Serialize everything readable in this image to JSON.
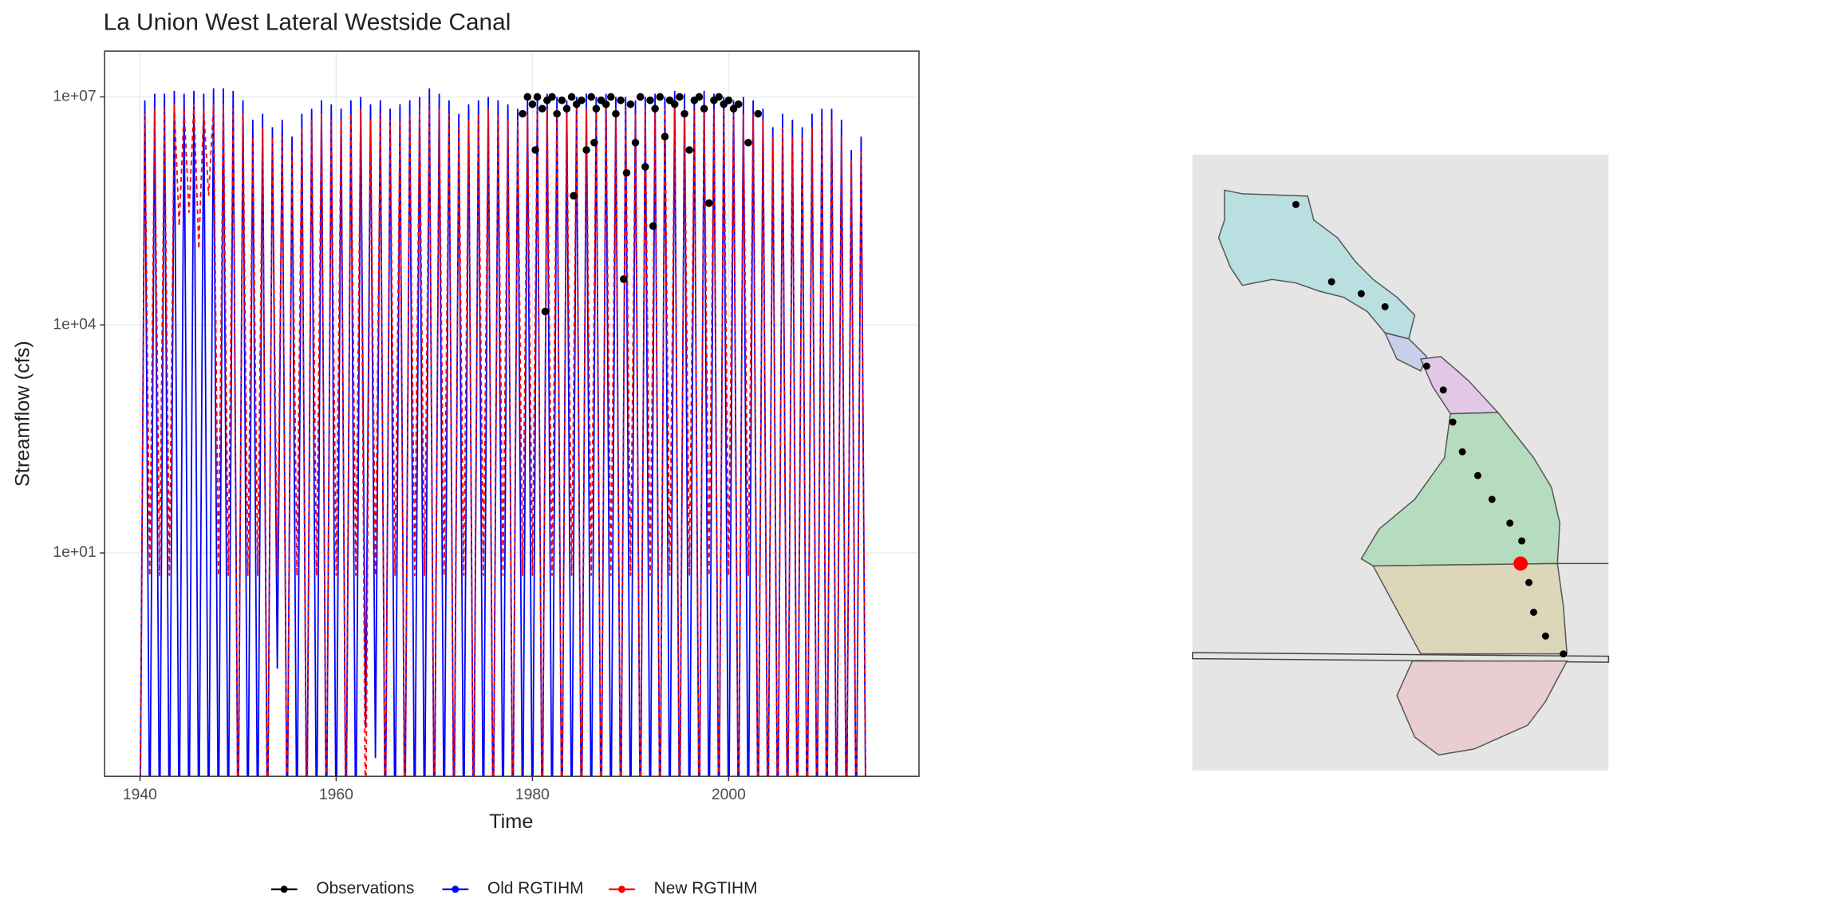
{
  "chart_data": {
    "type": "line",
    "title": "La Union West Lateral  Westside Canal",
    "x_label": "Time",
    "y_label": "Streamflow (cfs)",
    "log_y": true,
    "grid": true,
    "legend": "bottom",
    "xlim": [
      1936.4,
      2019.4
    ],
    "xticks": [
      1940,
      1960,
      1980,
      2000
    ],
    "ylim": [
      0.0115,
      40000000
    ],
    "yticks": [
      {
        "value": 10,
        "label": "1e+01"
      },
      {
        "value": 10000,
        "label": "1e+04"
      },
      {
        "value": 10000000,
        "label": "1e+07"
      }
    ],
    "x": [
      1940,
      1940.5,
      1941,
      1941.5,
      1942,
      1942.5,
      1943,
      1943.5,
      1944,
      1944.5,
      1945,
      1945.5,
      1946,
      1946.5,
      1947,
      1947.5,
      1948,
      1948.5,
      1949,
      1949.5,
      1950,
      1950.5,
      1951,
      1951.5,
      1952,
      1952.5,
      1953,
      1953.5,
      1954,
      1954.5,
      1955,
      1955.5,
      1956,
      1956.5,
      1957,
      1957.5,
      1958,
      1958.5,
      1959,
      1959.5,
      1960,
      1960.5,
      1961,
      1961.5,
      1962,
      1962.5,
      1963,
      1963.5,
      1964,
      1964.5,
      1965,
      1965.5,
      1966,
      1966.5,
      1967,
      1967.5,
      1968,
      1968.5,
      1969,
      1969.5,
      1970,
      1970.5,
      1971,
      1971.5,
      1972,
      1972.5,
      1973,
      1973.5,
      1974,
      1974.5,
      1975,
      1975.5,
      1976,
      1976.5,
      1977,
      1977.5,
      1978,
      1978.5,
      1979,
      1979.5,
      1980,
      1980.5,
      1981,
      1981.5,
      1982,
      1982.5,
      1983,
      1983.5,
      1984,
      1984.5,
      1985,
      1985.5,
      1986,
      1986.5,
      1987,
      1987.5,
      1988,
      1988.5,
      1989,
      1989.5,
      1990,
      1990.5,
      1991,
      1991.5,
      1992,
      1992.5,
      1993,
      1993.5,
      1994,
      1994.5,
      1995,
      1995.5,
      1996,
      1996.5,
      1997,
      1997.5,
      1998,
      1998.5,
      1999,
      1999.5,
      2000,
      2000.5,
      2001,
      2001.5,
      2002,
      2002.5,
      2003,
      2003.5,
      2004,
      2004.5,
      2005,
      2005.5,
      2006,
      2006.5,
      2007,
      2007.5,
      2008,
      2008.5,
      2009,
      2009.5,
      2010,
      2010.5,
      2011,
      2011.5,
      2012,
      2012.5,
      2013,
      2013.5,
      2014
    ],
    "series": [
      {
        "name": "Observations",
        "color": "#000000",
        "kind": "points",
        "x": [
          1979,
          1979.5,
          1980,
          1980.3,
          1980.5,
          1981,
          1981.3,
          1981.5,
          1982,
          1982.5,
          1983,
          1983.5,
          1984,
          1984.2,
          1984.5,
          1985,
          1985.5,
          1986,
          1986.3,
          1986.5,
          1987,
          1987.5,
          1988,
          1988.5,
          1989,
          1989.3,
          1989.6,
          1990,
          1990.5,
          1991,
          1991.5,
          1992,
          1992.3,
          1992.5,
          1993,
          1993.5,
          1994,
          1994.5,
          1995,
          1995.5,
          1996,
          1996.5,
          1997,
          1997.5,
          1998,
          1998.5,
          1999,
          1999.5,
          2000,
          2000.5,
          2001,
          2002,
          2003
        ],
        "values": [
          6000000.0,
          10000000.0,
          8000000.0,
          2000000.0,
          10000000.0,
          7000000.0,
          15000.0,
          9000000.0,
          10000000.0,
          6000000.0,
          9000000.0,
          7000000.0,
          10000000.0,
          500000.0,
          8000000.0,
          9000000.0,
          2000000.0,
          10000000.0,
          2500000.0,
          7000000.0,
          9000000.0,
          8000000.0,
          10000000.0,
          6000000.0,
          9000000.0,
          40000.0,
          1000000.0,
          8000000.0,
          2500000.0,
          10000000.0,
          1200000.0,
          9000000.0,
          200000.0,
          7000000.0,
          10000000.0,
          3000000.0,
          9000000.0,
          8000000.0,
          10000000.0,
          6000000.0,
          2000000.0,
          9000000.0,
          10000000.0,
          7000000.0,
          400000.0,
          9000000.0,
          10000000.0,
          8000000.0,
          9000000.0,
          7000000.0,
          8000000.0,
          2500000.0,
          6000000.0
        ]
      },
      {
        "name": "Old RGTIHM",
        "color": "#0000ff",
        "kind": "line",
        "line_style": "solid",
        "values": [
          0.001,
          9000000.0,
          0.001,
          11000000.0,
          0.001,
          11000000.0,
          0.001,
          12000000.0,
          0.001,
          11000000.0,
          0.001,
          12000000.0,
          0.001,
          11000000.0,
          0.001,
          13000000.0,
          0.001,
          13000000.0,
          0.001,
          12000000.0,
          0.001,
          9000000.0,
          0.001,
          5000000.0,
          0.001,
          6000000.0,
          0.001,
          4000000.0,
          0.3,
          5000000.0,
          0.001,
          3000000.0,
          0.001,
          6000000.0,
          0.001,
          7000000.0,
          0.001,
          9000000.0,
          0.001,
          8000000.0,
          0.001,
          7000000.0,
          0.001,
          9000000.0,
          0.001,
          10000000.0,
          0.05,
          8000000.0,
          0.02,
          9000000.0,
          0.001,
          7000000.0,
          0.001,
          8000000.0,
          0.001,
          9000000.0,
          0.001,
          10000000.0,
          0.001,
          13000000.0,
          0.001,
          11000000.0,
          0.001,
          9000000.0,
          0.001,
          6000000.0,
          0.001,
          8000000.0,
          0.001,
          9000000.0,
          0.001,
          10000000.0,
          0.001,
          9000000.0,
          0.001,
          8000000.0,
          0.001,
          7000000.0,
          0.001,
          9000000.0,
          0.001,
          10000000.0,
          0.001,
          11000000.0,
          0.001,
          10000000.0,
          0.001,
          9000000.0,
          0.001,
          10000000.0,
          0.001,
          11000000.0,
          0.001,
          10000000.0,
          0.001,
          11000000.0,
          0.001,
          10000000.0,
          0.001,
          10000000.0,
          0.001,
          9000000.0,
          0.001,
          10000000.0,
          0.001,
          11000000.0,
          0.001,
          10000000.0,
          0.001,
          12000000.0,
          0.001,
          11000000.0,
          0.001,
          10000000.0,
          0.001,
          12000000.0,
          0.001,
          11000000.0,
          0.001,
          10000000.0,
          0.001,
          9000000.0,
          0.001,
          10000000.0,
          0.001,
          9000000.0,
          0.001,
          7000000.0,
          0.001,
          4000000.0,
          0.001,
          6000000.0,
          0.001,
          5000000.0,
          0.001,
          4000000.0,
          0.001,
          6000000.0,
          0.001,
          7000000.0,
          0.001,
          7000000.0,
          0.001,
          5000000.0,
          0.001,
          2000000.0,
          0.001,
          3000000.0,
          0.001
        ]
      },
      {
        "name": "New RGTIHM",
        "color": "#ff0000",
        "kind": "line",
        "line_style": "dashed",
        "values": [
          0.001,
          6000000.0,
          5,
          7000000.0,
          5,
          7000000.0,
          5,
          8000000.0,
          200000.0,
          7000000.0,
          300000.0,
          8000000.0,
          100000.0,
          7000000.0,
          500000.0,
          8000000.0,
          5,
          8000000.0,
          5,
          7000000.0,
          0.001,
          6000000.0,
          5,
          3000000.0,
          5,
          4000000.0,
          0.001,
          3000000.0,
          5,
          3000000.0,
          0.001,
          2000000.0,
          5,
          4000000.0,
          0.001,
          5000000.0,
          5,
          6000000.0,
          0.001,
          5000000.0,
          5,
          5000000.0,
          0.001,
          6000000.0,
          5,
          7000000.0,
          0.001,
          5000000.0,
          5,
          6000000.0,
          0.001,
          5000000.0,
          5,
          5000000.0,
          0.001,
          6000000.0,
          5,
          7000000.0,
          5,
          8000000.0,
          0.001,
          7000000.0,
          5,
          6000000.0,
          0.001,
          4000000.0,
          5,
          5000000.0,
          0.001,
          6000000.0,
          5,
          7000000.0,
          0.001,
          6000000.0,
          5,
          5000000.0,
          0.001,
          5000000.0,
          5,
          6000000.0,
          5,
          7000000.0,
          0.001,
          7000000.0,
          5,
          7000000.0,
          0.001,
          6000000.0,
          5,
          7000000.0,
          0.001,
          7000000.0,
          5,
          7000000.0,
          0.001,
          7000000.0,
          5,
          7000000.0,
          0.001,
          7000000.0,
          5,
          6000000.0,
          0.001,
          7000000.0,
          5,
          7000000.0,
          0.001,
          7000000.0,
          5,
          8000000.0,
          0.001,
          7000000.0,
          5,
          7000000.0,
          0.001,
          8000000.0,
          5,
          7000000.0,
          0.001,
          7000000.0,
          5,
          6000000.0,
          0.001,
          6000000.0,
          5,
          6000000.0,
          0.001,
          5000000.0,
          0.001,
          3000000.0,
          0.001,
          4000000.0,
          0.001,
          3000000.0,
          0.001,
          3000000.0,
          0.001,
          4000000.0,
          0.001,
          5000000.0,
          0.001,
          5000000.0,
          0.001,
          3000000.0,
          0.001,
          1500000.0,
          0.001,
          2000000.0,
          0.001
        ]
      }
    ]
  }
}
